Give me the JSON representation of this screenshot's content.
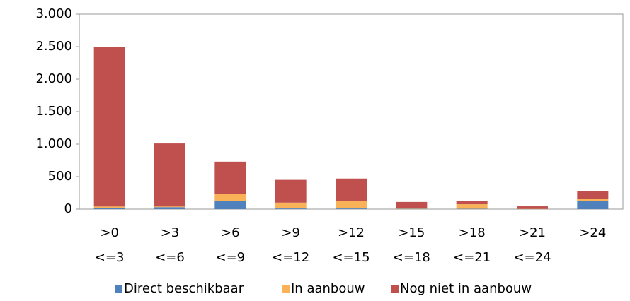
{
  "chart_data": {
    "type": "bar",
    "stacked": true,
    "categories": [
      [
        ">0",
        "<=3"
      ],
      [
        ">3",
        "<=6"
      ],
      [
        ">6",
        "<=9"
      ],
      [
        ">9",
        "<=12"
      ],
      [
        ">12",
        "<=15"
      ],
      [
        ">15",
        "<=18"
      ],
      [
        ">18",
        "<=21"
      ],
      [
        ">21",
        "<=24"
      ],
      [
        ">24"
      ]
    ],
    "series": [
      {
        "name": "Direct beschikbaar",
        "color": "#4f81bd",
        "values": [
          20,
          30,
          130,
          10,
          10,
          5,
          5,
          0,
          120
        ]
      },
      {
        "name": "In aanbouw",
        "color": "#f9b258",
        "values": [
          20,
          10,
          100,
          90,
          110,
          10,
          70,
          3,
          40
        ]
      },
      {
        "name": "Nog niet in aanbouw",
        "color": "#c0504d",
        "values": [
          2460,
          970,
          500,
          350,
          350,
          95,
          55,
          40,
          120
        ]
      }
    ],
    "ylim": [
      0,
      3000
    ],
    "yticks": [
      0,
      500,
      {
        "value": 1000,
        "label": "1.000"
      },
      {
        "value": 1500,
        "label": "1.500"
      },
      {
        "value": 2000,
        "label": "2.000"
      },
      {
        "value": 2500,
        "label": "2.500"
      },
      {
        "value": 3000,
        "label": "3.000"
      }
    ],
    "legend": "bottom"
  }
}
